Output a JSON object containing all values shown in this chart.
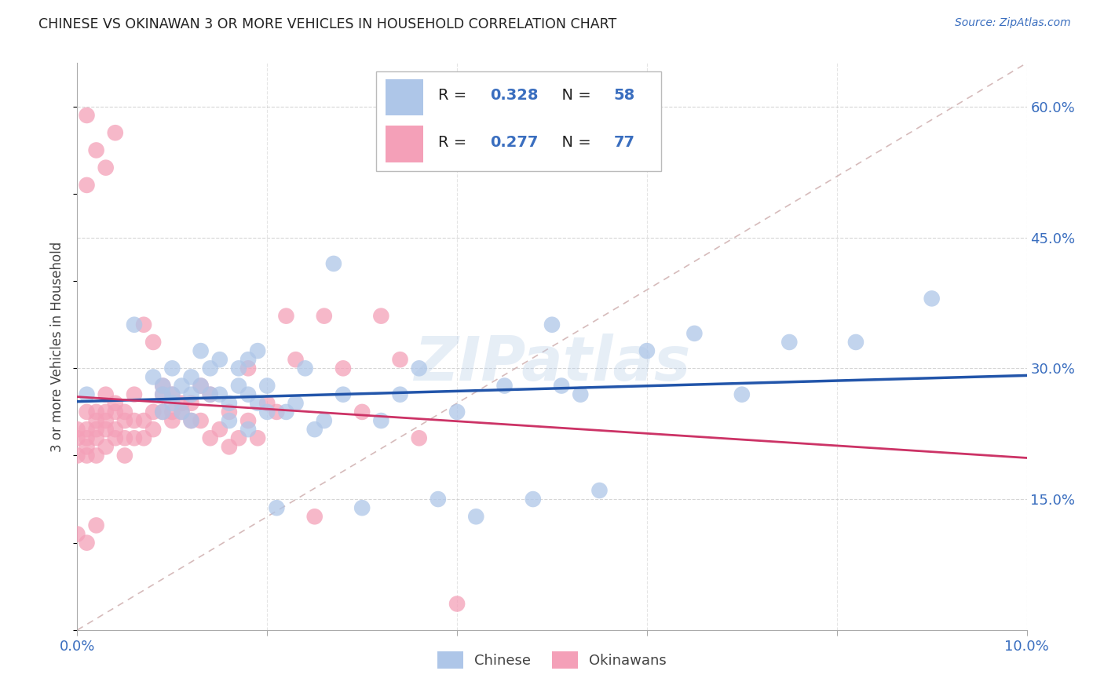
{
  "title": "CHINESE VS OKINAWAN 3 OR MORE VEHICLES IN HOUSEHOLD CORRELATION CHART",
  "source": "Source: ZipAtlas.com",
  "ylabel": "3 or more Vehicles in Household",
  "xlim": [
    0.0,
    0.1
  ],
  "ylim": [
    0.0,
    0.65
  ],
  "xticks": [
    0.0,
    0.02,
    0.04,
    0.06,
    0.08,
    0.1
  ],
  "yticks_right": [
    0.15,
    0.3,
    0.45,
    0.6
  ],
  "ytick_labels_right": [
    "15.0%",
    "30.0%",
    "45.0%",
    "60.0%"
  ],
  "watermark": "ZIPatlas",
  "chinese_color": "#aec6e8",
  "okinawan_color": "#f4a0b8",
  "chinese_line_color": "#2255aa",
  "okinawan_line_color": "#cc3366",
  "diagonal_color": "#ccaaaa",
  "background_color": "#ffffff",
  "grid_color": "#cccccc",
  "chinese_scatter_x": [
    0.001,
    0.006,
    0.008,
    0.009,
    0.009,
    0.009,
    0.01,
    0.01,
    0.01,
    0.011,
    0.011,
    0.012,
    0.012,
    0.012,
    0.013,
    0.013,
    0.014,
    0.014,
    0.015,
    0.015,
    0.016,
    0.016,
    0.017,
    0.017,
    0.018,
    0.018,
    0.018,
    0.019,
    0.019,
    0.02,
    0.02,
    0.021,
    0.022,
    0.023,
    0.024,
    0.025,
    0.026,
    0.027,
    0.028,
    0.03,
    0.032,
    0.034,
    0.036,
    0.038,
    0.04,
    0.042,
    0.045,
    0.048,
    0.05,
    0.051,
    0.053,
    0.055,
    0.06,
    0.065,
    0.07,
    0.075,
    0.082,
    0.09
  ],
  "chinese_scatter_y": [
    0.27,
    0.35,
    0.29,
    0.27,
    0.25,
    0.28,
    0.26,
    0.27,
    0.3,
    0.25,
    0.28,
    0.24,
    0.27,
    0.29,
    0.28,
    0.32,
    0.3,
    0.27,
    0.27,
    0.31,
    0.24,
    0.26,
    0.28,
    0.3,
    0.23,
    0.31,
    0.27,
    0.26,
    0.32,
    0.25,
    0.28,
    0.14,
    0.25,
    0.26,
    0.3,
    0.23,
    0.24,
    0.42,
    0.27,
    0.14,
    0.24,
    0.27,
    0.3,
    0.15,
    0.25,
    0.13,
    0.28,
    0.15,
    0.35,
    0.28,
    0.27,
    0.16,
    0.32,
    0.34,
    0.27,
    0.33,
    0.33,
    0.38
  ],
  "okinawan_scatter_x": [
    0.0,
    0.0,
    0.0,
    0.001,
    0.001,
    0.001,
    0.001,
    0.001,
    0.002,
    0.002,
    0.002,
    0.002,
    0.002,
    0.003,
    0.003,
    0.003,
    0.003,
    0.003,
    0.004,
    0.004,
    0.004,
    0.004,
    0.005,
    0.005,
    0.005,
    0.005,
    0.006,
    0.006,
    0.006,
    0.007,
    0.007,
    0.007,
    0.008,
    0.008,
    0.008,
    0.009,
    0.009,
    0.009,
    0.01,
    0.01,
    0.01,
    0.011,
    0.011,
    0.012,
    0.012,
    0.013,
    0.013,
    0.014,
    0.014,
    0.015,
    0.016,
    0.016,
    0.017,
    0.018,
    0.018,
    0.019,
    0.02,
    0.021,
    0.022,
    0.023,
    0.025,
    0.026,
    0.028,
    0.03,
    0.032,
    0.034,
    0.036,
    0.04,
    0.002,
    0.003,
    0.004,
    0.001,
    0.001,
    0.002,
    0.0,
    0.001
  ],
  "okinawan_scatter_y": [
    0.2,
    0.22,
    0.23,
    0.21,
    0.22,
    0.23,
    0.25,
    0.2,
    0.2,
    0.22,
    0.23,
    0.24,
    0.25,
    0.21,
    0.23,
    0.24,
    0.25,
    0.27,
    0.22,
    0.23,
    0.25,
    0.26,
    0.2,
    0.22,
    0.24,
    0.25,
    0.22,
    0.24,
    0.27,
    0.22,
    0.24,
    0.35,
    0.23,
    0.25,
    0.33,
    0.25,
    0.27,
    0.28,
    0.24,
    0.25,
    0.27,
    0.25,
    0.26,
    0.24,
    0.26,
    0.24,
    0.28,
    0.22,
    0.27,
    0.23,
    0.21,
    0.25,
    0.22,
    0.24,
    0.3,
    0.22,
    0.26,
    0.25,
    0.36,
    0.31,
    0.13,
    0.36,
    0.3,
    0.25,
    0.36,
    0.31,
    0.22,
    0.03,
    0.55,
    0.53,
    0.57,
    0.59,
    0.51,
    0.12,
    0.11,
    0.1
  ]
}
